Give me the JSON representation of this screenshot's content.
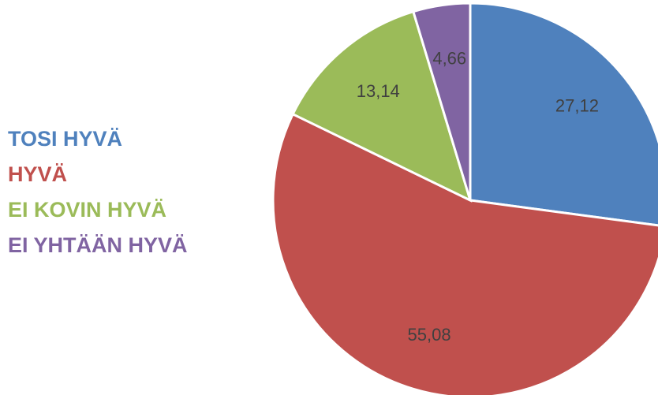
{
  "chart_data": {
    "type": "pie",
    "categories": [
      "TOSI HYVÄ",
      "HYVÄ",
      "EI KOVIN HYVÄ",
      "EI YHTÄÄN HYVÄ"
    ],
    "values": [
      27.12,
      55.08,
      13.14,
      4.66
    ],
    "value_labels": [
      "27,12",
      "55,08",
      "13,14",
      "4,66"
    ],
    "colors": [
      "#4f81bd",
      "#c0504d",
      "#9bbb59",
      "#8064a2"
    ],
    "legend": "left"
  }
}
